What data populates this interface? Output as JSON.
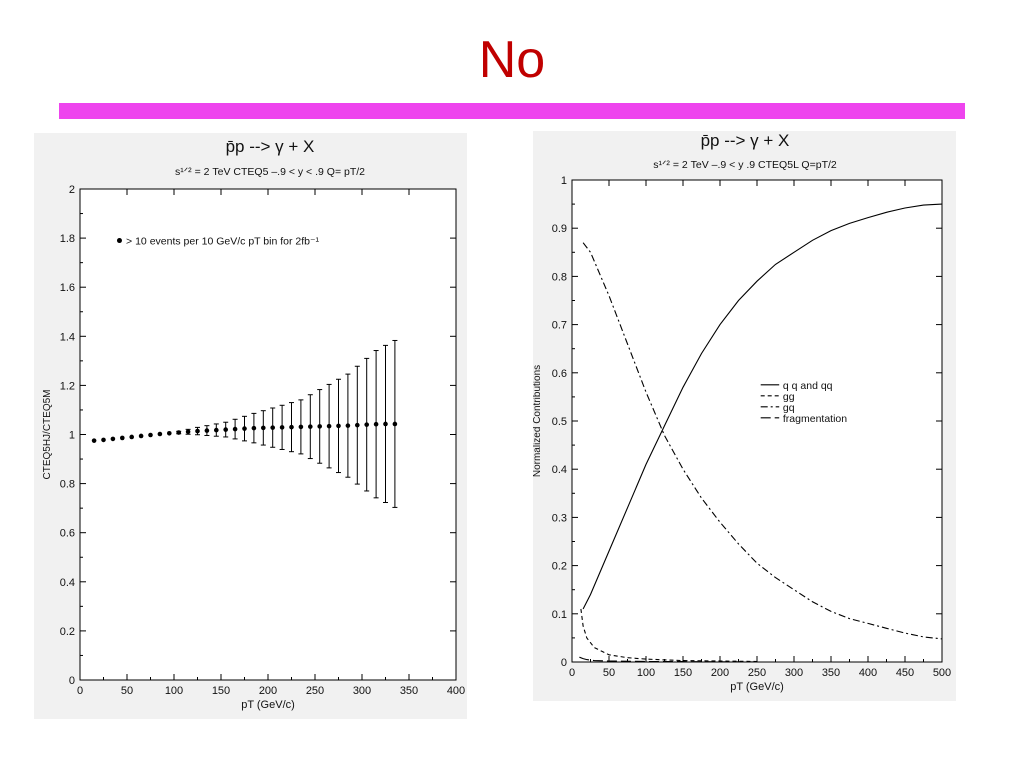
{
  "slide": {
    "title": "No",
    "title_color": "#c00000",
    "accent_bar_color": "#ee44ee"
  },
  "chart_data": [
    {
      "type": "scatter",
      "title": "p̄p --> γ + X",
      "subtitle": "s¹ᐟ² = 2 TeV    CTEQ5   –.9 < y < .9    Q= pT/2",
      "xlabel": "pT (GeV/c)",
      "ylabel": "CTEQ5HJ/CTEQ5M",
      "xlim": [
        0,
        400
      ],
      "ylim": [
        0,
        2
      ],
      "xticks": [
        "0",
        "50",
        "100",
        "150",
        "200",
        "250",
        "300",
        "350",
        "400"
      ],
      "yticks": [
        "0",
        "0.2",
        "0.4",
        "0.6",
        "0.8",
        "1",
        "1.2",
        "1.4",
        "1.6",
        "1.8",
        "2"
      ],
      "legend": {
        "position": "top-left",
        "text": "> 10 events per 10 GeV/c pT bin for 2fb⁻¹"
      },
      "grid": false,
      "series": [
        {
          "x": [
            15,
            25,
            35,
            45,
            55,
            65,
            75,
            85,
            95,
            105,
            115,
            125,
            135,
            145,
            155,
            165,
            175,
            185,
            195,
            205,
            215,
            225,
            235,
            245,
            255,
            265,
            275,
            285,
            295,
            305,
            315,
            325,
            335
          ],
          "y": [
            0.975,
            0.978,
            0.982,
            0.986,
            0.99,
            0.994,
            0.998,
            1.002,
            1.005,
            1.008,
            1.011,
            1.014,
            1.016,
            1.018,
            1.02,
            1.022,
            1.024,
            1.026,
            1.027,
            1.028,
            1.029,
            1.03,
            1.031,
            1.032,
            1.033,
            1.034,
            1.035,
            1.036,
            1.038,
            1.04,
            1.042,
            1.043,
            1.043
          ],
          "err": [
            0,
            0,
            0,
            0,
            0,
            0,
            0,
            0,
            0,
            0.005,
            0.01,
            0.015,
            0.02,
            0.025,
            0.03,
            0.04,
            0.05,
            0.06,
            0.07,
            0.08,
            0.09,
            0.1,
            0.11,
            0.13,
            0.15,
            0.17,
            0.19,
            0.21,
            0.24,
            0.27,
            0.3,
            0.32,
            0.34
          ]
        }
      ]
    },
    {
      "type": "line",
      "title": "p̄p --> γ + X",
      "subtitle": "s¹ᐟ² = 2 TeV    –.9 < y .9    CTEQ5L    Q=pT/2",
      "xlabel": "pT (GeV/c)",
      "ylabel": "Normalized Contributions",
      "xlim": [
        0,
        500
      ],
      "ylim": [
        0,
        1
      ],
      "xticks": [
        "0",
        "50",
        "100",
        "150",
        "200",
        "250",
        "300",
        "350",
        "400",
        "450",
        "500"
      ],
      "yticks": [
        "0",
        "0.1",
        "0.2",
        "0.3",
        "0.4",
        "0.5",
        "0.6",
        "0.7",
        "0.8",
        "0.9",
        "1"
      ],
      "legend_position": "center-right",
      "grid": false,
      "series": [
        {
          "name": "q q and qq",
          "style": "solid",
          "x": [
            15,
            25,
            50,
            75,
            100,
            125,
            150,
            175,
            200,
            225,
            250,
            275,
            300,
            325,
            350,
            375,
            400,
            425,
            450,
            475,
            500
          ],
          "y": [
            0.11,
            0.14,
            0.23,
            0.32,
            0.41,
            0.49,
            0.57,
            0.64,
            0.7,
            0.75,
            0.79,
            0.825,
            0.85,
            0.875,
            0.895,
            0.91,
            0.922,
            0.933,
            0.942,
            0.948,
            0.95
          ]
        },
        {
          "name": "gg",
          "style": "dashed",
          "x": [
            12,
            15,
            20,
            30,
            50,
            75,
            100,
            150,
            200,
            250
          ],
          "y": [
            0.11,
            0.075,
            0.05,
            0.03,
            0.015,
            0.009,
            0.006,
            0.003,
            0.002,
            0.001
          ]
        },
        {
          "name": "gq",
          "style": "dashdot",
          "x": [
            15,
            25,
            50,
            75,
            100,
            125,
            150,
            175,
            200,
            225,
            250,
            275,
            300,
            325,
            350,
            375,
            400,
            425,
            450,
            475,
            500
          ],
          "y": [
            0.87,
            0.85,
            0.76,
            0.66,
            0.56,
            0.47,
            0.4,
            0.34,
            0.29,
            0.245,
            0.205,
            0.175,
            0.15,
            0.125,
            0.105,
            0.09,
            0.08,
            0.07,
            0.06,
            0.052,
            0.048
          ]
        },
        {
          "name": "fragmentation",
          "style": "longdash",
          "x": [
            10,
            15,
            20,
            30,
            50,
            100,
            150,
            200,
            250
          ],
          "y": [
            0.01,
            0.007,
            0.005,
            0.003,
            0.002,
            0.001,
            0.0008,
            0.0005,
            0.0003
          ]
        }
      ]
    }
  ]
}
